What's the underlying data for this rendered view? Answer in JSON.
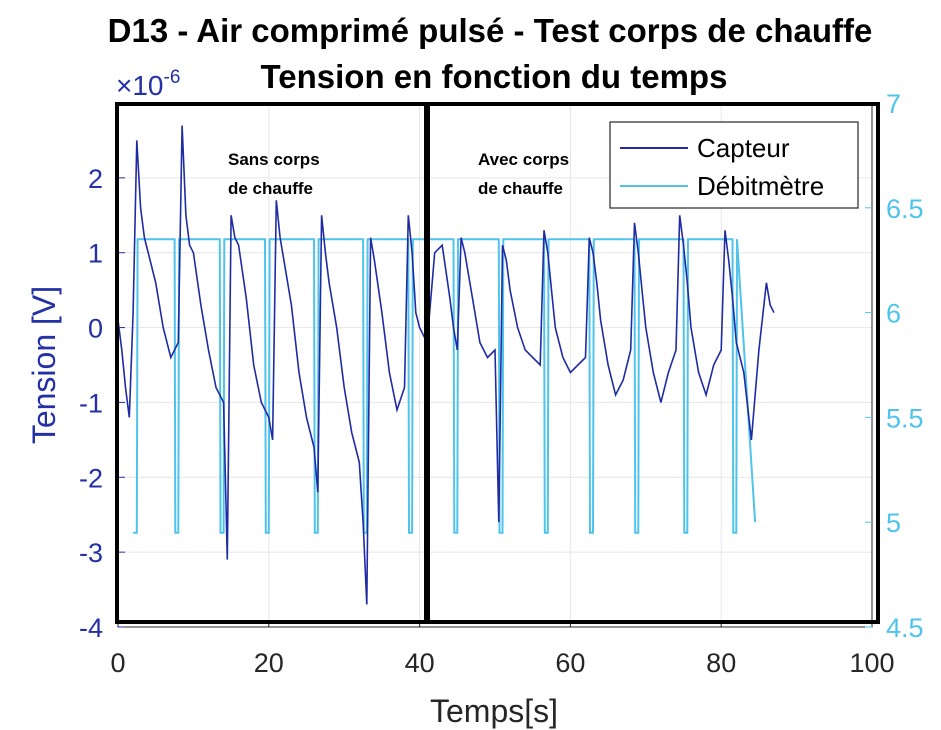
{
  "chart_data": {
    "type": "line",
    "title": "D13 - Air comprimé pulsé - Test corps de chauffe",
    "subtitle": "Tension en fonction du temps",
    "xlabel": "Temps[s]",
    "ylabel": "Tension [V]",
    "y_exponent": "×10",
    "y_exponent_power": "-6",
    "xlim": [
      0,
      100
    ],
    "ylim_left": [
      -4,
      3
    ],
    "ylim_right": [
      4.5,
      7
    ],
    "x_ticks": [
      "0",
      "20",
      "40",
      "60",
      "80",
      "100"
    ],
    "y_left_ticks": [
      "-4",
      "-3",
      "-2",
      "-1",
      "0",
      "1",
      "2"
    ],
    "y_right_ticks": [
      "4.5",
      "5",
      "5.5",
      "6",
      "6.5",
      "7"
    ],
    "grid": true,
    "legend_position": "top-right",
    "colors": {
      "capteur": "#1f2ba3",
      "debitmetre": "#4fc3ec",
      "left_axis": "#2430a6",
      "right_axis": "#4fc3ec",
      "grid": "#e6e6e6"
    },
    "series": [
      {
        "name": "Capteur",
        "axis": "left",
        "x": [
          0,
          0.5,
          1,
          1.5,
          2,
          2.5,
          3,
          3.5,
          4,
          5,
          6,
          7,
          8,
          8.5,
          9,
          9.5,
          10,
          11,
          12,
          13,
          14,
          14.5,
          15,
          15.5,
          16,
          17,
          18,
          19,
          20,
          20.5,
          21,
          21.5,
          22,
          23,
          24,
          25,
          26,
          26.5,
          27,
          27.5,
          28,
          29,
          30,
          31,
          32,
          32.5,
          33,
          33.5,
          34,
          35,
          36,
          37,
          38,
          38.5,
          39,
          39.5,
          40,
          41,
          42,
          43,
          44,
          44.5,
          45,
          45.5,
          46,
          47,
          48,
          49,
          50,
          50.5,
          51,
          51.5,
          52,
          53,
          54,
          55,
          56,
          56.5,
          57,
          57.5,
          58,
          59,
          60,
          61,
          62,
          62.5,
          63,
          63.5,
          64,
          65,
          66,
          67,
          68,
          68.5,
          69,
          69.5,
          70,
          71,
          72,
          73,
          74,
          74.5,
          75,
          75.5,
          76,
          77,
          78,
          79,
          80,
          80.5,
          81,
          81.5,
          82,
          83,
          84,
          85,
          86,
          86.5,
          87
        ],
        "values": [
          0.1,
          -0.3,
          -0.8,
          -1.2,
          0.2,
          2.5,
          1.6,
          1.2,
          1.0,
          0.6,
          0.0,
          -0.4,
          -0.2,
          2.7,
          1.5,
          1.1,
          1.0,
          0.3,
          -0.3,
          -0.8,
          -1.0,
          -3.1,
          1.5,
          1.2,
          1.1,
          0.4,
          -0.5,
          -1.0,
          -1.2,
          -1.5,
          1.7,
          1.2,
          0.9,
          0.3,
          -0.6,
          -1.2,
          -1.6,
          -2.2,
          1.5,
          1.0,
          0.6,
          0.0,
          -0.8,
          -1.4,
          -1.8,
          -2.6,
          -3.7,
          1.2,
          0.9,
          0.2,
          -0.6,
          -1.1,
          -0.8,
          1.5,
          1.0,
          0.2,
          0.0,
          -0.2,
          1.0,
          1.1,
          0.4,
          0.0,
          -0.3,
          1.2,
          1.0,
          0.4,
          -0.2,
          -0.4,
          -0.3,
          -2.6,
          1.1,
          0.9,
          0.5,
          0.0,
          -0.3,
          -0.4,
          -0.5,
          1.3,
          1.0,
          0.5,
          0.0,
          -0.4,
          -0.6,
          -0.5,
          -0.4,
          1.2,
          1.0,
          0.6,
          0.1,
          -0.5,
          -0.9,
          -0.7,
          -0.3,
          1.4,
          1.0,
          0.5,
          0.0,
          -0.6,
          -1.0,
          -0.6,
          -0.3,
          1.5,
          1.1,
          0.6,
          0.0,
          -0.6,
          -0.9,
          -0.5,
          -0.3,
          1.3,
          0.9,
          0.4,
          -0.2,
          -0.6,
          -1.5,
          -0.3,
          0.6,
          0.3,
          0.2
        ]
      },
      {
        "name": "Débitmètre",
        "axis": "right",
        "x": [
          2,
          2.5,
          2.6,
          7.5,
          7.6,
          8.0,
          8.1,
          13.5,
          13.6,
          14.0,
          14.1,
          19.5,
          19.6,
          20.0,
          20.1,
          26.0,
          26.1,
          26.5,
          26.6,
          32.5,
          32.6,
          33.0,
          33.1,
          38.5,
          38.6,
          39.0,
          39.1,
          44.5,
          44.6,
          45.0,
          45.1,
          50.5,
          50.6,
          51.0,
          51.1,
          56.5,
          56.6,
          57.0,
          57.1,
          62.5,
          62.6,
          63.0,
          63.1,
          68.5,
          68.6,
          69.0,
          69.1,
          75.0,
          75.1,
          75.5,
          75.6,
          81.5,
          81.6,
          82.0,
          82.1,
          84.5
        ],
        "values": [
          4.95,
          4.95,
          6.35,
          6.35,
          4.95,
          4.95,
          6.35,
          6.35,
          4.95,
          4.95,
          6.35,
          6.35,
          4.95,
          4.95,
          6.35,
          6.35,
          4.95,
          4.95,
          6.35,
          6.35,
          4.95,
          4.95,
          6.35,
          6.35,
          4.95,
          4.95,
          6.35,
          6.35,
          4.95,
          4.95,
          6.35,
          6.35,
          4.95,
          4.95,
          6.35,
          6.35,
          4.95,
          4.95,
          6.35,
          6.35,
          4.95,
          4.95,
          6.35,
          6.35,
          4.95,
          4.95,
          6.35,
          6.35,
          4.95,
          4.95,
          6.35,
          6.35,
          4.95,
          4.95,
          6.35,
          5.0
        ]
      }
    ],
    "annotations": [
      {
        "line1": "Sans corps",
        "line2": "de chauffe"
      },
      {
        "line1": "Avec corps",
        "line2": "de chauffe"
      }
    ]
  }
}
